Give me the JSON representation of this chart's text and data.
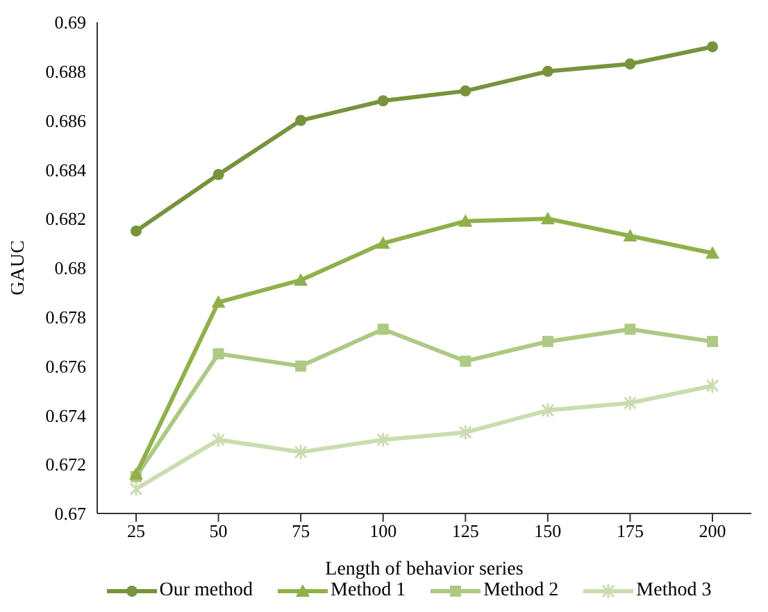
{
  "chart_data": {
    "type": "line",
    "xlabel": "Length of behavior series",
    "ylabel": "GAUC",
    "categories": [
      "25",
      "50",
      "75",
      "100",
      "125",
      "150",
      "175",
      "200"
    ],
    "series": [
      {
        "name": "Our method",
        "color": "#77933c",
        "marker": "circle",
        "values": [
          0.6815,
          0.6838,
          0.686,
          0.6868,
          0.6872,
          0.688,
          0.6883,
          0.689
        ]
      },
      {
        "name": "Method 1",
        "color": "#8fb04a",
        "marker": "triangle",
        "values": [
          0.6716,
          0.6786,
          0.6795,
          0.681,
          0.6819,
          0.682,
          0.6813,
          0.6806
        ]
      },
      {
        "name": "Method 2",
        "color": "#adc983",
        "marker": "square",
        "values": [
          0.6715,
          0.6765,
          0.676,
          0.6775,
          0.6762,
          0.677,
          0.6775,
          0.677
        ]
      },
      {
        "name": "Method 3",
        "color": "#cbdcb0",
        "marker": "cross",
        "values": [
          0.671,
          0.673,
          0.6725,
          0.673,
          0.6733,
          0.6742,
          0.6745,
          0.6752
        ]
      }
    ],
    "ylim": [
      0.67,
      0.69
    ],
    "yticks": [
      0.67,
      0.672,
      0.674,
      0.676,
      0.678,
      0.68,
      0.682,
      0.684,
      0.686,
      0.688,
      0.69
    ],
    "grid": false,
    "legend": "bottom"
  }
}
